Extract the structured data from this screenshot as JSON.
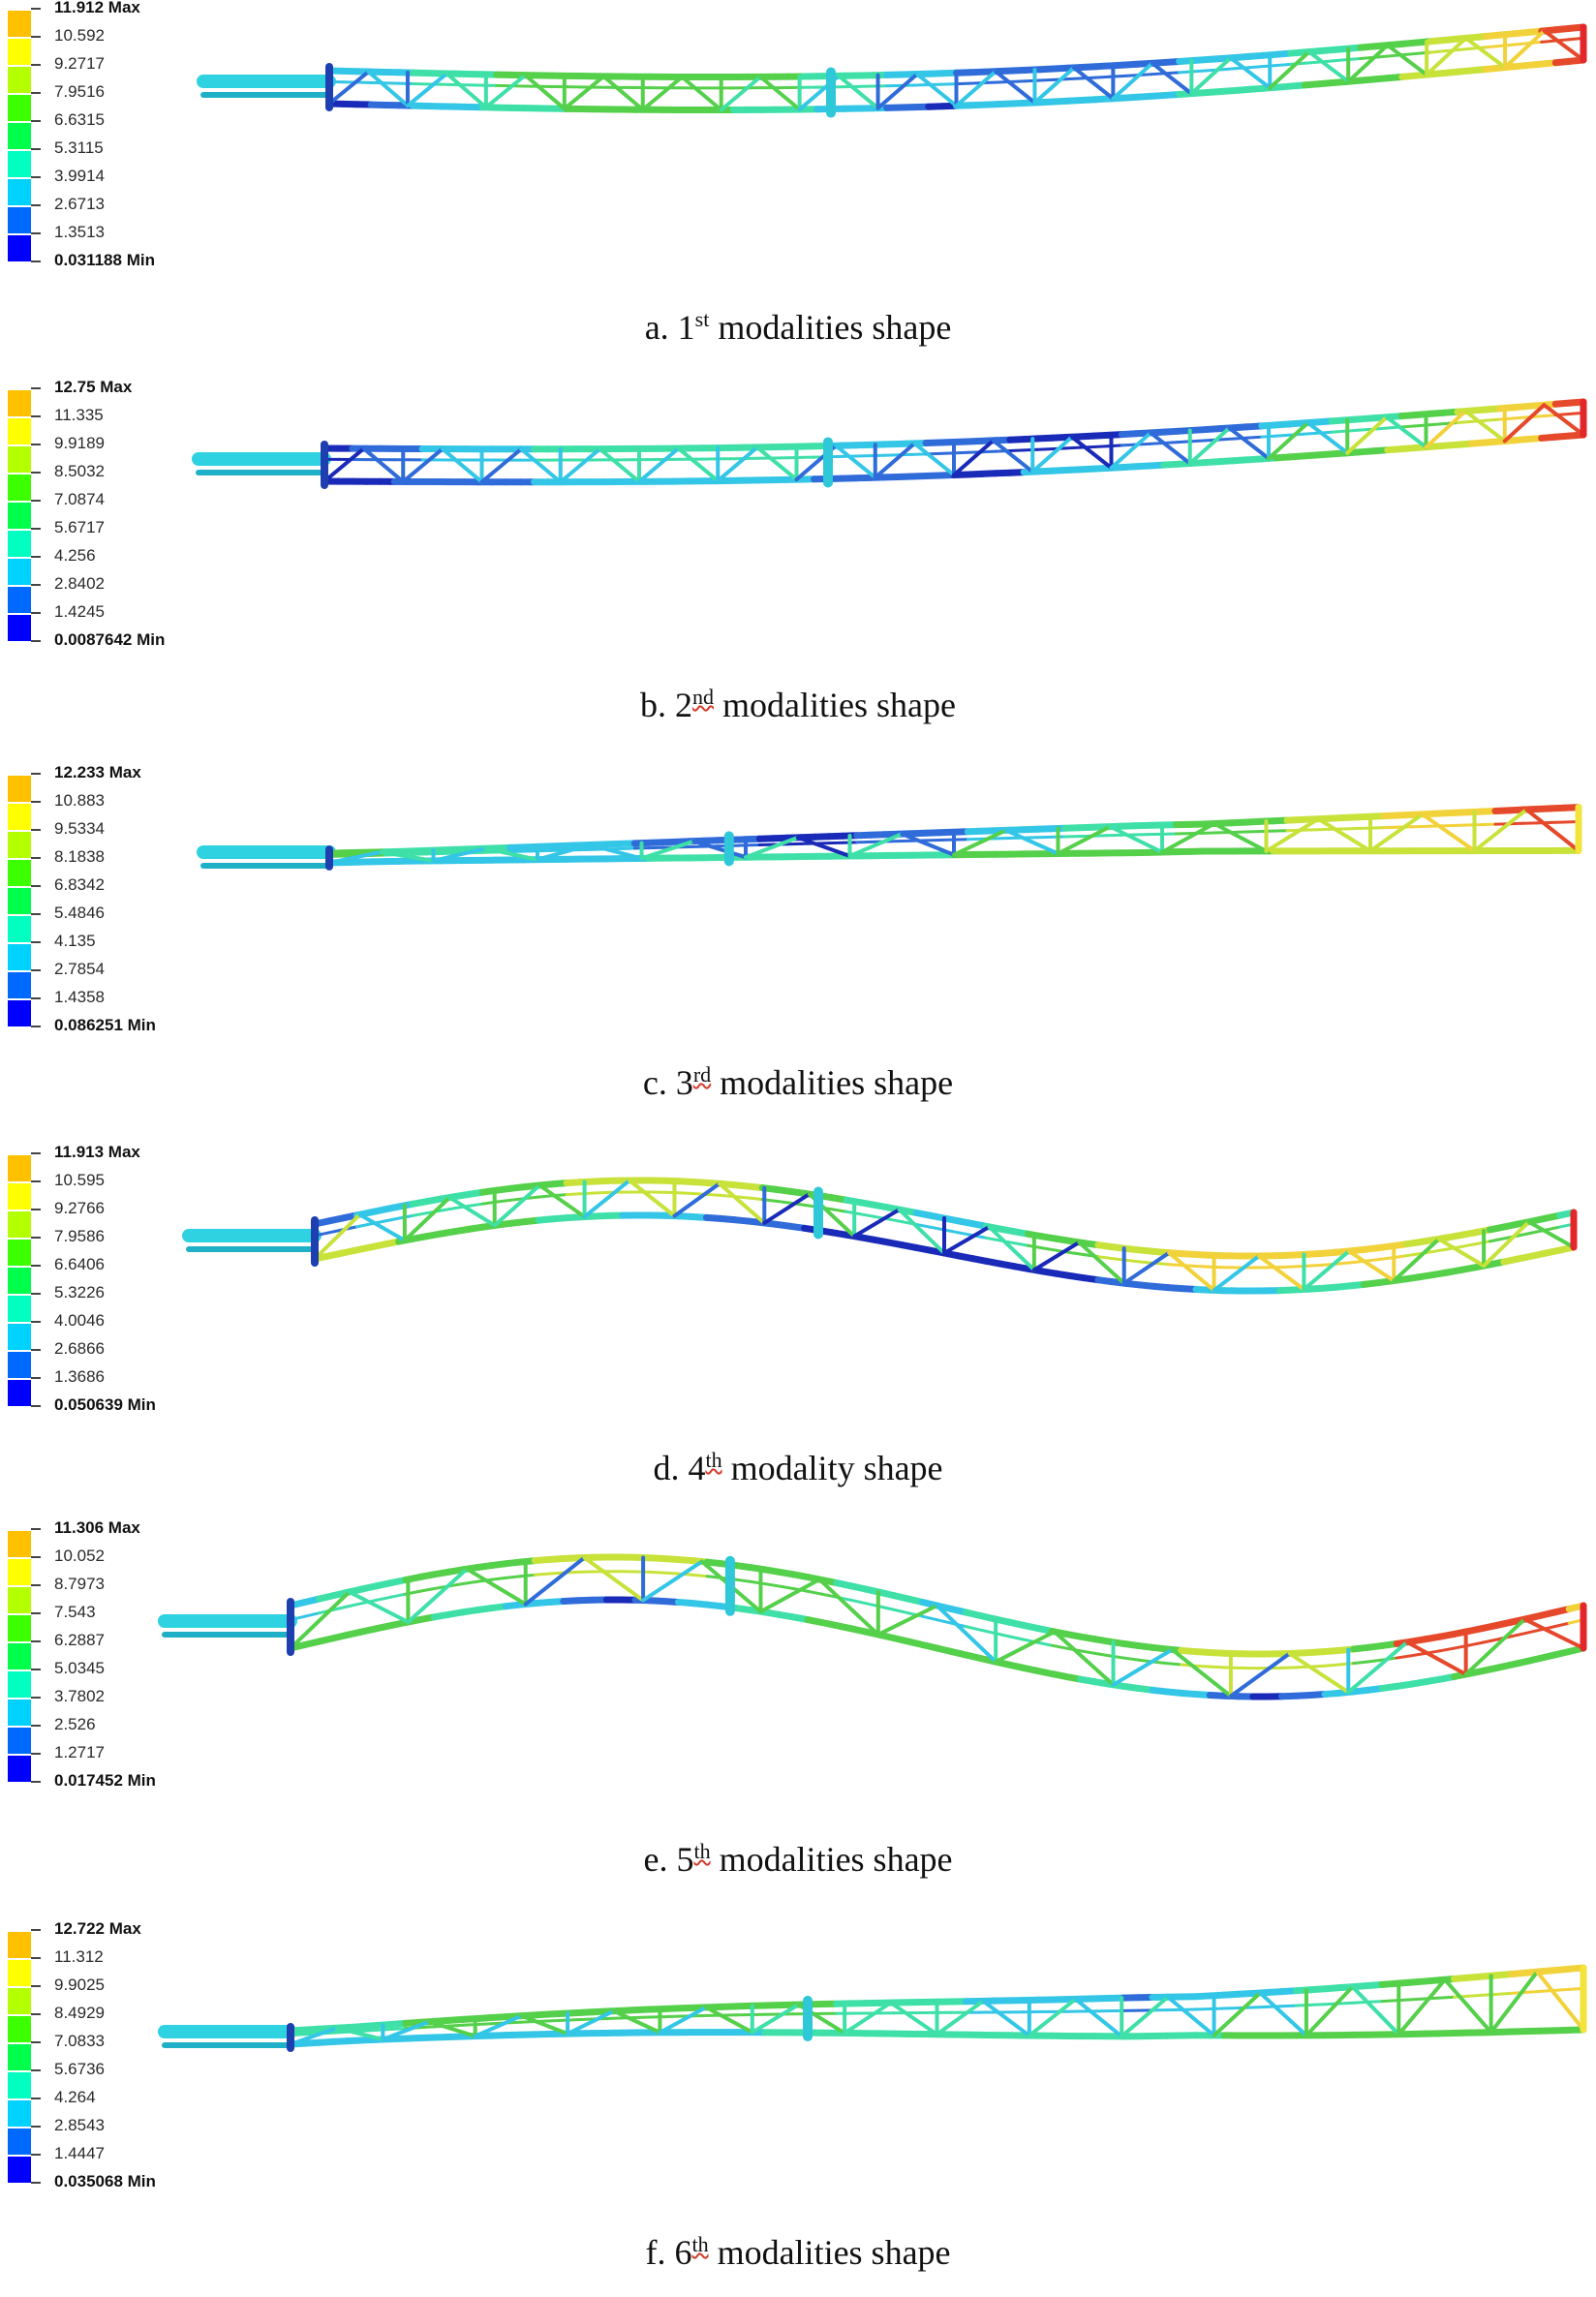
{
  "colormap": [
    "#0000ff",
    "#0069ff",
    "#00d2ff",
    "#00ffc0",
    "#00ff4a",
    "#3cff00",
    "#b4ff00",
    "#ffff00",
    "#ffc000",
    "#ff0000"
  ],
  "structure_color_scale": [
    "#1a2ab8",
    "#2f6bd9",
    "#33c6e6",
    "#3ee0a8",
    "#55d04a",
    "#c8e23a",
    "#f2d23a",
    "#e5482a"
  ],
  "panels": [
    {
      "legend": [
        "11.912 Max",
        "10.592",
        "9.2717",
        "7.9516",
        "6.6315",
        "5.3115",
        "3.9914",
        "2.6713",
        "1.3513",
        "0.031188 Min"
      ],
      "caption": {
        "prefix": "a. 1",
        "sup": "st",
        "suffix": "modalities shape"
      }
    },
    {
      "legend": [
        "12.75 Max",
        "11.335",
        "9.9189",
        "8.5032",
        "7.0874",
        "5.6717",
        "4.256",
        "2.8402",
        "1.4245",
        "0.0087642 Min"
      ],
      "caption": {
        "prefix": "b. 2",
        "sup": "nd",
        "suffix": "modalities shape"
      }
    },
    {
      "legend": [
        "12.233 Max",
        "10.883",
        "9.5334",
        "8.1838",
        "6.8342",
        "5.4846",
        "4.135",
        "2.7854",
        "1.4358",
        "0.086251 Min"
      ],
      "caption": {
        "prefix": "c. 3",
        "sup": "rd",
        "suffix": "modalities shape"
      }
    },
    {
      "legend": [
        "11.913 Max",
        "10.595",
        "9.2766",
        "7.9586",
        "6.6406",
        "5.3226",
        "4.0046",
        "2.6866",
        "1.3686",
        "0.050639 Min"
      ],
      "caption": {
        "prefix": "d. 4",
        "sup": "th",
        "suffix": "modality shape"
      }
    },
    {
      "legend": [
        "11.306 Max",
        "10.052",
        "8.7973",
        "7.543",
        "6.2887",
        "5.0345",
        "3.7802",
        "2.526",
        "1.2717",
        "0.017452 Min"
      ],
      "caption": {
        "prefix": "e. 5",
        "sup": "th",
        "suffix": "modalities shape"
      }
    },
    {
      "legend": [
        "12.722 Max",
        "11.312",
        "9.9025",
        "8.4929",
        "7.0833",
        "5.6736",
        "4.264",
        "2.8543",
        "1.4447",
        "0.035068 Min"
      ],
      "caption": {
        "prefix": "f. 6",
        "sup": "th",
        "suffix": "modalities shape"
      }
    }
  ]
}
